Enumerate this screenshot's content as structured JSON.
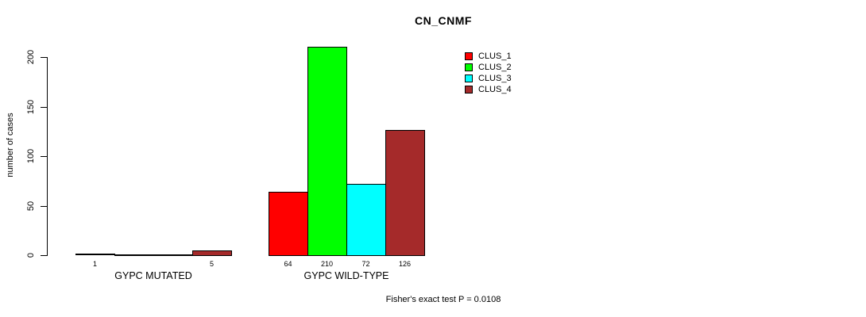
{
  "chart_data": {
    "type": "bar",
    "title": "CN_CNMF",
    "ylabel": "number of cases",
    "xlabel": "",
    "ylim": [
      0,
      210
    ],
    "yticks": [
      0,
      50,
      100,
      150,
      200
    ],
    "grid": false,
    "legend_position": "top-right",
    "categories": [
      "GYPC MUTATED",
      "GYPC WILD-TYPE"
    ],
    "series": [
      {
        "name": "CLUS_1",
        "color": "#FF0000",
        "values": [
          1,
          64
        ]
      },
      {
        "name": "CLUS_2",
        "color": "#00FF00",
        "values": [
          0,
          210
        ]
      },
      {
        "name": "CLUS_3",
        "color": "#00FFFF",
        "values": [
          0,
          72
        ]
      },
      {
        "name": "CLUS_4",
        "color": "#A52A2A",
        "values": [
          5,
          126
        ]
      }
    ],
    "show_bar_values": true,
    "bar_value_labels": [
      [
        "1",
        "",
        "",
        "5"
      ],
      [
        "64",
        "210",
        "72",
        "126"
      ]
    ],
    "annotation": "Fisher's exact test P = 0.0108",
    "axis_color": "#000000",
    "background": "#ffffff"
  }
}
